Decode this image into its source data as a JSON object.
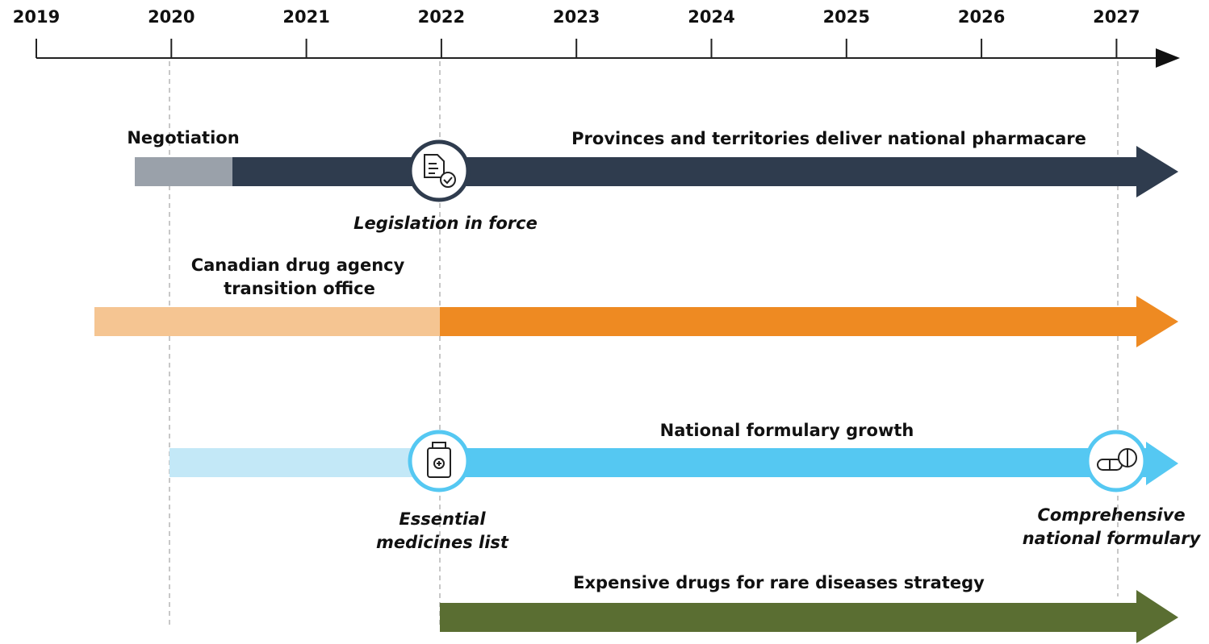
{
  "timeline": {
    "years": [
      "2019",
      "2020",
      "2021",
      "2022",
      "2023",
      "2024",
      "2025",
      "2026",
      "2027"
    ],
    "tracks": [
      {
        "labels": [
          "Negotiation",
          "Provinces and territories deliver national pharmacare"
        ],
        "milestones": [
          {
            "label": [
              "Legislation in force"
            ]
          }
        ]
      },
      {
        "labels": [
          [
            "Canadian drug agency",
            "transition office"
          ]
        ]
      },
      {
        "labels": [
          "National formulary growth"
        ],
        "milestones": [
          {
            "label": [
              "Essential",
              "medicines list"
            ]
          },
          {
            "label": [
              "Comprehensive",
              "national formulary"
            ]
          }
        ]
      },
      {
        "labels": [
          "Expensive drugs for rare diseases strategy"
        ]
      }
    ]
  }
}
